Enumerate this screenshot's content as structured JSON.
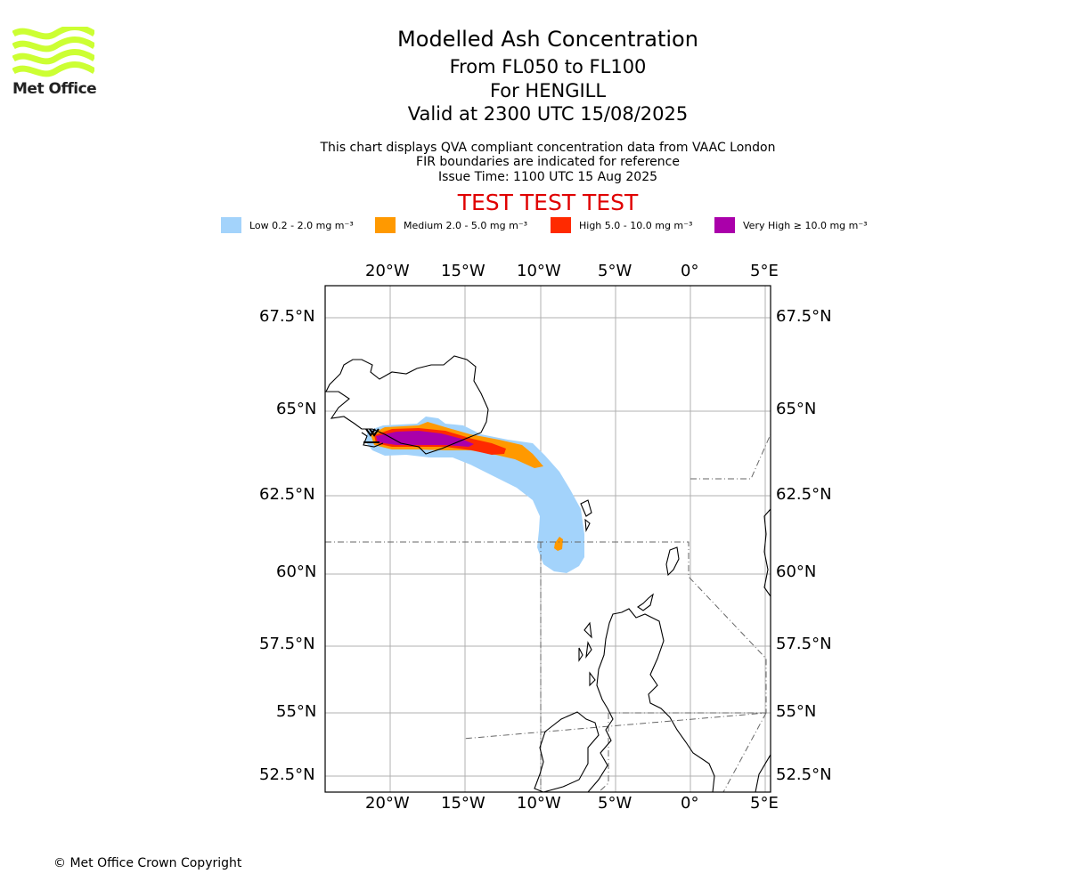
{
  "brand": {
    "logo_text": "Met Office",
    "logo_color": "#ccff33",
    "logo_icon": "met-office-waves-logo"
  },
  "header": {
    "title": "Modelled Ash Concentration",
    "levels": "From FL050 to FL100",
    "location": "For HENGILL",
    "valid": "Valid at 2300 UTC 15/08/2025",
    "desc1": "This chart displays QVA compliant concentration data from VAAC London",
    "desc2": "FIR boundaries are indicated for reference",
    "issue": "Issue Time: 1100 UTC 15 Aug 2025",
    "test": "TEST TEST TEST",
    "test_color": "#e00000"
  },
  "legend": [
    {
      "label": "Low 0.2 - 2.0 mg m⁻³",
      "color": "#a3d3fb"
    },
    {
      "label": "Medium 2.0 - 5.0 mg m⁻³",
      "color": "#ff9900"
    },
    {
      "label": "High 5.0 - 10.0 mg m⁻³",
      "color": "#ff2a00"
    },
    {
      "label": "Very High ≥ 10.0 mg m⁻³",
      "color": "#aa00aa"
    }
  ],
  "map": {
    "lon_ticks": [
      "20°W",
      "15°W",
      "10°W",
      "5°W",
      "0°",
      "5°E"
    ],
    "lat_ticks": [
      "67.5°N",
      "65°N",
      "62.5°N",
      "60°N",
      "57.5°N",
      "55°N",
      "52.5°N"
    ],
    "extent": {
      "lon_min": -24.3,
      "lon_max": 5.2,
      "lat_min": 51.9,
      "lat_max": 68.5
    },
    "volcano": "HENGILL"
  },
  "footer": {
    "copyright": "© Met Office Crown Copyright"
  }
}
